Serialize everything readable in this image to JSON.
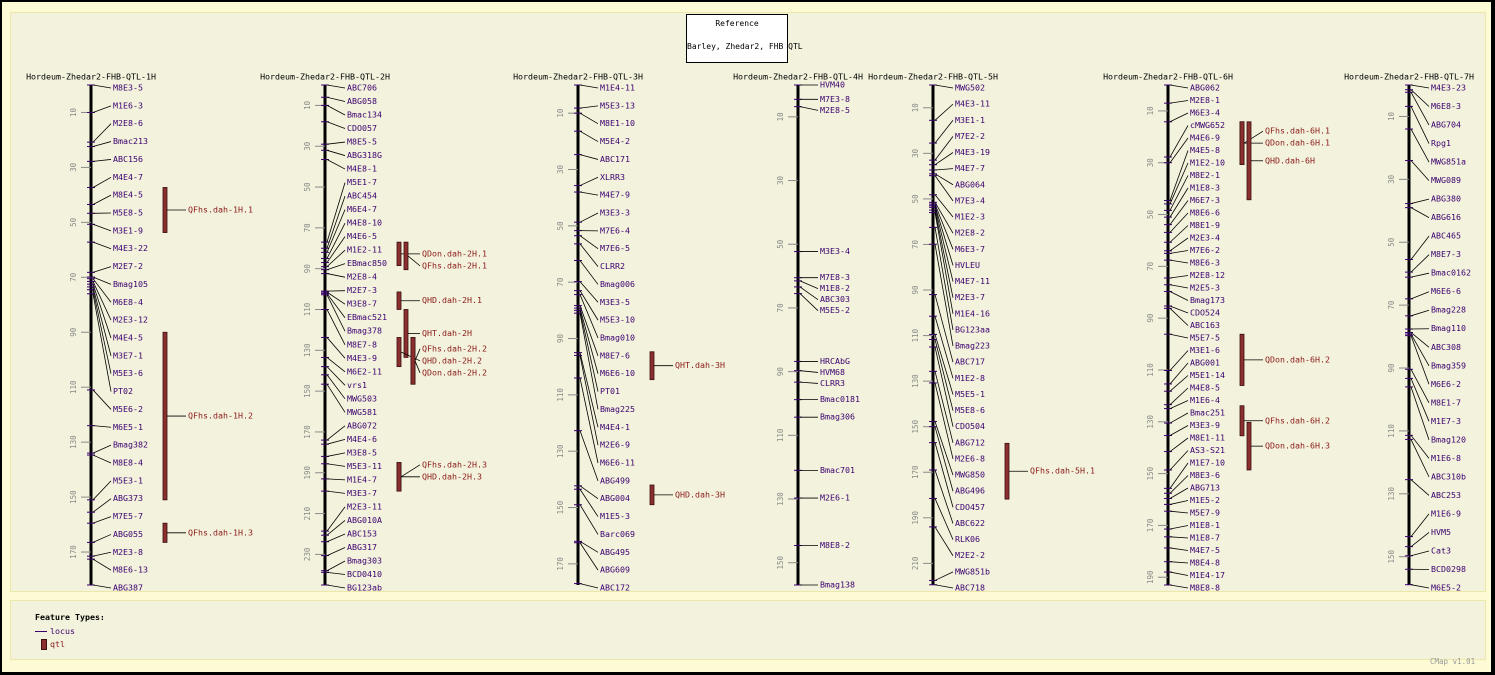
{
  "reference": {
    "heading": "Reference",
    "name": "Barley, Zhedar2, FHB QTL"
  },
  "colors": {
    "locus": "#3a0070",
    "qtl_fill": "#8b2e2e",
    "qtl_text": "#8b1a1a",
    "axis": "#000000",
    "tick_text": "#8a8a8a"
  },
  "legend": {
    "title": "Feature Types:",
    "locus": "locus",
    "qtl": "qtl"
  },
  "version": "CMap v1.01",
  "maps": [
    {
      "title": "Hordeum-Zhedar2-FHB-QTL-1H",
      "length": 182,
      "ticks": [
        10,
        30,
        50,
        70,
        90,
        110,
        130,
        150,
        170
      ],
      "markers": [
        [
          "M8E3-5",
          0
        ],
        [
          "M1E6-3",
          10
        ],
        [
          "M2E8-6",
          20.8
        ],
        [
          "Bmac213",
          22.4
        ],
        [
          "ABC156",
          27.8
        ],
        [
          "M4E4-7",
          37.3
        ],
        [
          "M8E4-5",
          43.5
        ],
        [
          "M5E8-5",
          46.7
        ],
        [
          "M3E1-9",
          50.7
        ],
        [
          "M4E3-22",
          57.2
        ],
        [
          "M2E7-2",
          68.2
        ],
        [
          "Bmag105",
          69.9
        ],
        [
          "M6E8-4",
          70.5
        ],
        [
          "M2E3-12",
          71.5
        ],
        [
          "M4E4-5",
          72.5
        ],
        [
          "M3E7-1",
          73.5
        ],
        [
          "M5E3-6",
          74.5
        ],
        [
          "PT02",
          76
        ],
        [
          "M5E6-2",
          111
        ],
        [
          "M6E5-1",
          124
        ],
        [
          "Bmag382",
          134
        ],
        [
          "M8E8-4",
          134.7
        ],
        [
          "M5E3-1",
          151
        ],
        [
          "ABG373",
          155.5
        ],
        [
          "M7E5-7",
          159.5
        ],
        [
          "ABG055",
          166.5
        ],
        [
          "M2E3-8",
          171.5
        ],
        [
          "M8E6-13",
          172.6
        ],
        [
          "ABG387",
          182
        ]
      ],
      "qtls": [
        [
          "QFhs.dah-1H.1",
          37.3,
          53.7,
          0
        ],
        [
          "QFhs.dah-1H.2",
          90,
          151,
          0
        ],
        [
          "QFhs.dah-1H.3",
          159.5,
          166.5,
          0
        ]
      ]
    },
    {
      "title": "Hordeum-Zhedar2-FHB-QTL-2H",
      "length": 245,
      "ticks": [
        10,
        30,
        50,
        70,
        90,
        110,
        130,
        150,
        170,
        190,
        210,
        230
      ],
      "markers": [
        [
          "ABC706",
          0
        ],
        [
          "ABG058",
          6
        ],
        [
          "Bmac134",
          10
        ],
        [
          "CDO057",
          18
        ],
        [
          "M8E5-5",
          29
        ],
        [
          "ABG318G",
          32
        ],
        [
          "M4E8-1",
          36.5
        ],
        [
          "M5E1-7",
          77
        ],
        [
          "ABC454",
          80
        ],
        [
          "M6E4-7",
          82
        ],
        [
          "M4E8-10",
          85
        ],
        [
          "M4E6-5",
          87
        ],
        [
          "M1E2-11",
          89
        ],
        [
          "EBmac850",
          90.5
        ],
        [
          "M2E8-4",
          92.4
        ],
        [
          "M2E7-3",
          101
        ],
        [
          "M3E8-7",
          101.5
        ],
        [
          "EBmac521",
          102.2
        ],
        [
          "Bmag378",
          102.8
        ],
        [
          "M8E7-8",
          110
        ],
        [
          "M4E3-9",
          123.7
        ],
        [
          "M6E2-11",
          133.5
        ],
        [
          "vrs1",
          138
        ],
        [
          "MWG503",
          142
        ],
        [
          "MWG581",
          146.6
        ],
        [
          "ABG072",
          174
        ],
        [
          "M4E4-6",
          176
        ],
        [
          "M3E8-5",
          182
        ],
        [
          "M5E3-11",
          185.6
        ],
        [
          "M1E4-7",
          193
        ],
        [
          "M3E3-7",
          199
        ],
        [
          "M2E3-11",
          218.6
        ],
        [
          "ABG010A",
          220.6
        ],
        [
          "ABC153",
          223.8
        ],
        [
          "ABG317",
          230.6
        ],
        [
          "Bmag303",
          238
        ],
        [
          "BCD0410",
          238.8
        ],
        [
          "BG123ab",
          245
        ]
      ],
      "qtls": [
        [
          "QDon.dah-2H.1",
          77,
          88.5,
          0
        ],
        [
          "QFhs.dah-2H.1",
          77,
          90.5,
          1
        ],
        [
          "QHD.dah-2H.1",
          101.4,
          110,
          0
        ],
        [
          "QHT.dah-2H",
          110,
          133.5,
          1
        ],
        [
          "QHD.dah-2H.2",
          123.7,
          138,
          0
        ],
        [
          "QFhs.dah-2H.2",
          123.7,
          146.6,
          2
        ],
        [
          "QDon.dah-2H.2",
          123.7,
          146.6,
          2
        ],
        [
          "QFhs.dah-2H.3",
          185,
          199,
          0
        ],
        [
          "QHD.dah-2H.3",
          185,
          199,
          0
        ]
      ]
    },
    {
      "title": "Hordeum-Zhedar2-FHB-QTL-3H",
      "length": 177.5,
      "ticks": [
        10,
        30,
        50,
        70,
        90,
        110,
        130,
        150,
        170
      ],
      "markers": [
        [
          "M1E4-11",
          0
        ],
        [
          "M5E3-13",
          8.2
        ],
        [
          "M8E1-10",
          10
        ],
        [
          "M5E4-2",
          16.4
        ],
        [
          "ABC171",
          24.7
        ],
        [
          "XLRR3",
          35.7
        ],
        [
          "M4E7-9",
          38
        ],
        [
          "M3E3-3",
          48.7
        ],
        [
          "M7E6-4",
          51.7
        ],
        [
          "M7E6-5",
          53.5
        ],
        [
          "CLRR2",
          56.4
        ],
        [
          "Bmag006",
          62.3
        ],
        [
          "M3E3-5",
          69.8
        ],
        [
          "M5E3-10",
          73
        ],
        [
          "Bmag010",
          74.4
        ],
        [
          "M8E7-6",
          78.3
        ],
        [
          "M6E6-10",
          79.2
        ],
        [
          "PT01",
          80
        ],
        [
          "Bmag225",
          81
        ],
        [
          "M4E4-1",
          95
        ],
        [
          "M2E6-9",
          96
        ],
        [
          "M6E6-11",
          104
        ],
        [
          "ABG499",
          122.7
        ],
        [
          "ABG004",
          142.3
        ],
        [
          "M1E5-3",
          143.5
        ],
        [
          "Barc069",
          149
        ],
        [
          "ABG495",
          162
        ],
        [
          "ABG609",
          162.5
        ],
        [
          "ABC172",
          177
        ]
      ],
      "qtls": [
        [
          "QHT.dah-3H",
          94.7,
          104.6,
          0
        ],
        [
          "QHD.dah-3H",
          142,
          149,
          0
        ]
      ]
    },
    {
      "title": "Hordeum-Zhedar2-FHB-QTL-4H",
      "length": 157,
      "ticks": [
        10,
        30,
        50,
        70,
        90,
        110,
        130,
        150
      ],
      "markers": [
        [
          "HVM40",
          0
        ],
        [
          "M7E3-8",
          4.5
        ],
        [
          "M2E8-5",
          6.8
        ],
        [
          "M3E3-4",
          52.3
        ],
        [
          "M7E8-3",
          60.5
        ],
        [
          "M1E8-2",
          61.5
        ],
        [
          "ABC303",
          63.4
        ],
        [
          "M5E5-2",
          65.5
        ],
        [
          "HRCAbG",
          86.8
        ],
        [
          "HVM68",
          89.7
        ],
        [
          "CLRR3",
          93.3
        ],
        [
          "Bmac0181",
          98.8
        ],
        [
          "Bmag306",
          104.3
        ],
        [
          "Bmac701",
          121
        ],
        [
          "M2E6-1",
          129.7
        ],
        [
          "M8E8-2",
          144.6
        ],
        [
          "Bmag138",
          157
        ]
      ],
      "qtls": []
    },
    {
      "title": "Hordeum-Zhedar2-FHB-QTL-5H",
      "length": 219.5,
      "ticks": [
        10,
        30,
        50,
        70,
        90,
        110,
        130,
        150,
        170,
        190,
        210
      ],
      "markers": [
        [
          "MWG502",
          0
        ],
        [
          "M4E3-11",
          15.5
        ],
        [
          "M3E1-1",
          25.5
        ],
        [
          "M7E2-2",
          33
        ],
        [
          "M4E3-19",
          35
        ],
        [
          "M4E7-7",
          37.3
        ],
        [
          "ABG064",
          39
        ],
        [
          "M7E3-4",
          39.8
        ],
        [
          "M1E2-3",
          48.2
        ],
        [
          "M2E8-2",
          51.5
        ],
        [
          "M6E3-7",
          52.3
        ],
        [
          "HVLEU",
          53
        ],
        [
          "M4E7-11",
          53.7
        ],
        [
          "M2E3-7",
          54.9
        ],
        [
          "M1E4-16",
          56
        ],
        [
          "BG123aa",
          62.5
        ],
        [
          "Bmag223",
          69.9
        ],
        [
          "ABC717",
          92
        ],
        [
          "M1E2-8",
          101.5
        ],
        [
          "M5E5-1",
          109.5
        ],
        [
          "M5E8-6",
          111.7
        ],
        [
          "CDO504",
          115
        ],
        [
          "ABG712",
          125.7
        ],
        [
          "M2E6-8",
          130.8
        ],
        [
          "MWG850",
          147.7
        ],
        [
          "ABG496",
          150
        ],
        [
          "CDO457",
          157
        ],
        [
          "ABC622",
          169
        ],
        [
          "RLK06",
          181.5
        ],
        [
          "M2E2-2",
          194
        ],
        [
          "MWG851b",
          217.5
        ],
        [
          "ABC718",
          219.4
        ]
      ],
      "qtls": [
        [
          "QFhs.dah-5H.1",
          157.3,
          181.8,
          0
        ]
      ]
    },
    {
      "title": "Hordeum-Zhedar2-FHB-QTL-6H",
      "length": 193,
      "ticks": [
        10,
        30,
        50,
        70,
        90,
        110,
        130,
        150,
        170,
        190
      ],
      "markers": [
        [
          "ABG062",
          0
        ],
        [
          "M2E8-1",
          7
        ],
        [
          "M6E3-4",
          14.2
        ],
        [
          "cMWG652",
          27.8
        ],
        [
          "M4E6-9",
          30
        ],
        [
          "M4E5-8",
          44.6
        ],
        [
          "M1E2-10",
          45.9
        ],
        [
          "M8E2-1",
          48.4
        ],
        [
          "M1E8-3",
          51
        ],
        [
          "M6E7-3",
          53.9
        ],
        [
          "M8E6-6",
          56.9
        ],
        [
          "M8E1-9",
          60.7
        ],
        [
          "M2E3-4",
          64
        ],
        [
          "M7E6-2",
          65
        ],
        [
          "M8E6-3",
          67.6
        ],
        [
          "M2E8-12",
          74.5
        ],
        [
          "M2E5-3",
          77.1
        ],
        [
          "Bmag173",
          79.7
        ],
        [
          "CDO524",
          85.3
        ],
        [
          "ABC163",
          86.2
        ],
        [
          "M5E7-5",
          96.2
        ],
        [
          "M3E1-6",
          110.2
        ],
        [
          "ABG001",
          115.4
        ],
        [
          "M5E1-14",
          118.2
        ],
        [
          "M4E8-5",
          123.4
        ],
        [
          "M1E6-4",
          124.9
        ],
        [
          "Bmac251",
          130.5
        ],
        [
          "M3E3-9",
          135.3
        ],
        [
          "M8E1-11",
          141.5
        ],
        [
          "AS3-S21",
          148.6
        ],
        [
          "M1E7-10",
          155.7
        ],
        [
          "M8E3-6",
          157.6
        ],
        [
          "ABG713",
          159.6
        ],
        [
          "M1E5-2",
          161.9
        ],
        [
          "M5E7-9",
          164.5
        ],
        [
          "M1E8-1",
          171.4
        ],
        [
          "M1E8-7",
          174.4
        ],
        [
          "M4E7-5",
          178.7
        ],
        [
          "M8E4-8",
          184
        ],
        [
          "M1E4-17",
          188
        ],
        [
          "M8E8-8",
          193
        ]
      ],
      "qtls": [
        [
          "QFhs.dah-6H.1",
          14.2,
          30.7,
          0
        ],
        [
          "QDon.dah-6H.1",
          14.2,
          30.7,
          0
        ],
        [
          "QHD.dah-6H",
          14.2,
          44.3,
          1
        ],
        [
          "QDon.dah-6H.2",
          96.2,
          116,
          0
        ],
        [
          "QFhs.dah-6H.2",
          123.8,
          135.4,
          0
        ],
        [
          "QDon.dah-6H.3",
          130.2,
          148.6,
          1
        ]
      ]
    },
    {
      "title": "Hordeum-Zhedar2-FHB-QTL-7H",
      "length": 159,
      "ticks": [
        10,
        30,
        50,
        70,
        90,
        110,
        130,
        150
      ],
      "markers": [
        [
          "M4E3-23",
          0
        ],
        [
          "M6E8-3",
          1.5
        ],
        [
          "ABG704",
          2.3
        ],
        [
          "Rpg1",
          6.8
        ],
        [
          "MWG851a",
          14
        ],
        [
          "MWG089",
          24
        ],
        [
          "ABG380",
          37.7
        ],
        [
          "ABG616",
          39
        ],
        [
          "ABC465",
          55.5
        ],
        [
          "M8E7-3",
          59.5
        ],
        [
          "Bmac0162",
          61.1
        ],
        [
          "M6E6-6",
          68
        ],
        [
          "Bmag228",
          73.4
        ],
        [
          "Bmag110",
          77.6
        ],
        [
          "ABC308",
          78.7
        ],
        [
          "Bmag359",
          79.2
        ],
        [
          "M6E6-2",
          79.7
        ],
        [
          "M8E1-7",
          90.4
        ],
        [
          "M1E7-3",
          93.3
        ],
        [
          "Bmag120",
          96
        ],
        [
          "M1E6-8",
          111.4
        ],
        [
          "ABC310b",
          112.7
        ],
        [
          "ABC253",
          125.5
        ],
        [
          "M1E6-9",
          143.6
        ],
        [
          "HVM5",
          146.8
        ],
        [
          "Cat3",
          149.7
        ],
        [
          "BCD0298",
          154
        ],
        [
          "M6E5-2",
          158.9
        ]
      ],
      "qtls": []
    }
  ]
}
